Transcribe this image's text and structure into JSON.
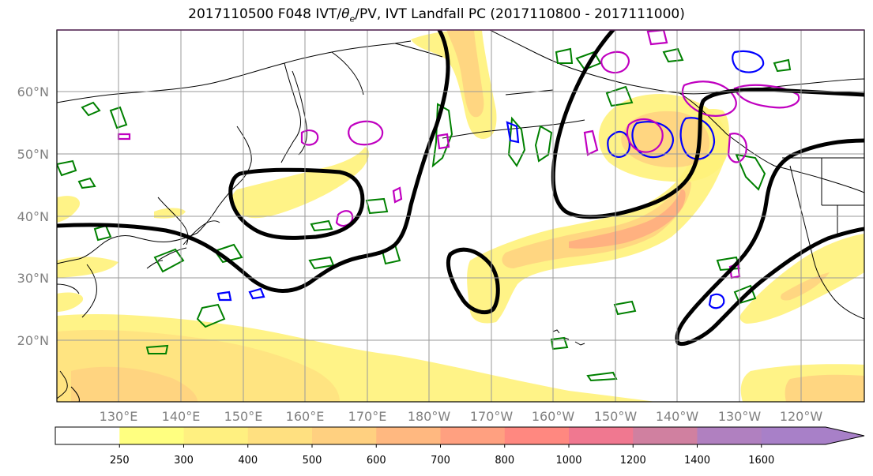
{
  "title": {
    "prefix": "2017110500 F048 IVT/",
    "theta": "θ",
    "subscript": "e",
    "suffix": "/PV, IVT Landfall PC (2017110800 - 2017111000)"
  },
  "map": {
    "latitude_labels": [
      "20°N",
      "30°N",
      "40°N",
      "50°N",
      "60°N"
    ],
    "longitude_labels": [
      "130°E",
      "140°E",
      "150°E",
      "160°E",
      "170°E",
      "180°W",
      "170°W",
      "160°W",
      "150°W",
      "140°W",
      "130°W",
      "120°W"
    ],
    "gridlines": true,
    "colors": {
      "land_outline": "#000000",
      "landfall_pc_contour": "#000000",
      "theta_e_contour": "#008000",
      "pv_contour_blue": "#0000ff",
      "pv_contour_magenta": "#c000c0",
      "grid": "#9a9a9a"
    }
  },
  "colorbar": {
    "units_note": "",
    "ticks": [
      "250",
      "300",
      "400",
      "500",
      "600",
      "700",
      "800",
      "1000",
      "1200",
      "1400",
      "1600"
    ],
    "colors": [
      "#ffffff",
      "#ffff80",
      "#fff080",
      "#ffe080",
      "#ffd080",
      "#ffb880",
      "#ffa080",
      "#ff8880",
      "#f07890",
      "#d080a0",
      "#b080c0",
      "#a880c8"
    ]
  }
}
